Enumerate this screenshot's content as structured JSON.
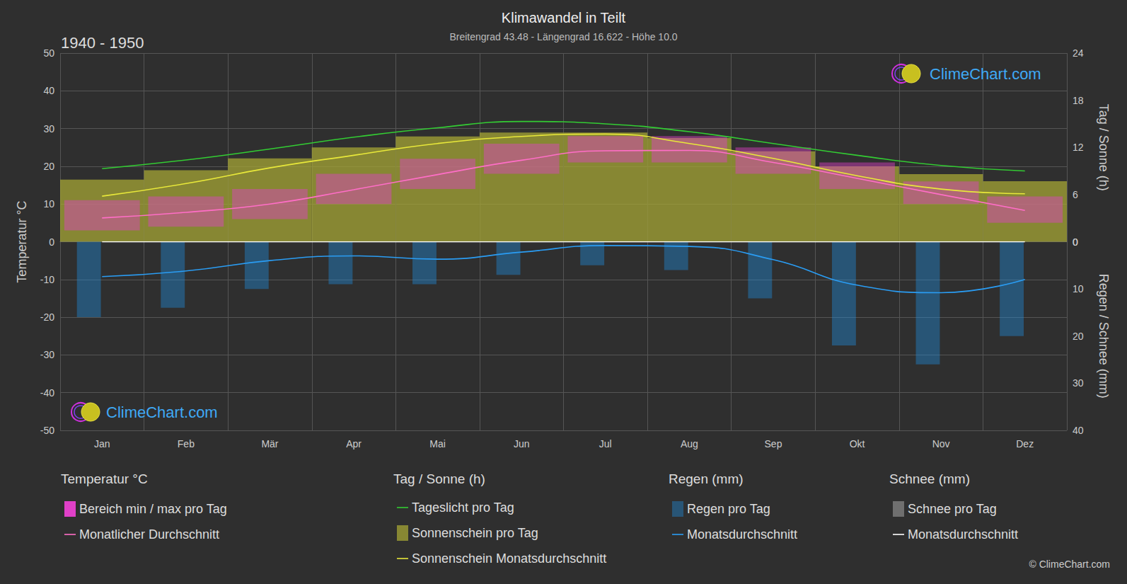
{
  "chart_data": {
    "type": "climate",
    "title": "Klimawandel in Teilt",
    "subtitle": "Breitengrad 43.48 - Längengrad 16.622 - Höhe 10.0",
    "period": "1940 - 1950",
    "ylabel": "Temperatur °C",
    "y2label": "Tag / Sonne (h)",
    "y3label": "Regen / Schnee (mm)",
    "watermark": "ClimeChart.com",
    "copyright": "© ClimeChart.com",
    "categories": [
      "Jan",
      "Feb",
      "Mär",
      "Apr",
      "Mai",
      "Jun",
      "Jul",
      "Aug",
      "Sep",
      "Okt",
      "Nov",
      "Dez"
    ],
    "ylim": [
      -50,
      50
    ],
    "yticks": [
      -50,
      -40,
      -30,
      -20,
      -10,
      0,
      10,
      20,
      30,
      40,
      50
    ],
    "y2lim": [
      0,
      24
    ],
    "y2ticks": [
      0,
      6,
      12,
      18,
      24
    ],
    "y3lim": [
      0,
      40
    ],
    "y3ticks": [
      0,
      10,
      20,
      30,
      40
    ],
    "grid": true,
    "legend_groups": [
      "Temperatur °C",
      "Tag / Sonne (h)",
      "Regen (mm)",
      "Schnee (mm)"
    ],
    "series": [
      {
        "name": "Bereich min / max pro Tag",
        "group": "Temperatur °C",
        "type": "range",
        "axis": "y",
        "color": "#e040c8",
        "min": [
          3,
          4,
          6,
          10,
          14,
          18,
          21,
          21,
          18,
          14,
          10,
          5
        ],
        "max": [
          11,
          12,
          14,
          18,
          22,
          26,
          28,
          28,
          25,
          21,
          16,
          12
        ]
      },
      {
        "name": "Monatlicher Durchschnitt",
        "group": "Temperatur °C",
        "type": "line",
        "axis": "y",
        "color": "#ff6ec7",
        "line_style": "solid",
        "values": [
          6.3,
          7.8,
          10.0,
          13.8,
          17.8,
          21.6,
          24.1,
          24.2,
          21.0,
          16.8,
          12.5,
          8.3
        ]
      },
      {
        "name": "Tageslicht pro Tag",
        "group": "Tag / Sonne (h)",
        "type": "line",
        "axis": "y2",
        "color": "#33cc33",
        "line_style": "solid",
        "values": [
          9.3,
          10.4,
          11.8,
          13.3,
          14.5,
          15.3,
          15.0,
          14.0,
          12.5,
          11.0,
          9.7,
          9.0
        ]
      },
      {
        "name": "Sonnenschein pro Tag",
        "group": "Tag / Sonne (h)",
        "type": "bar",
        "axis": "y2",
        "color": "#a5a536",
        "values": [
          7.9,
          9.1,
          10.6,
          12.0,
          13.4,
          13.9,
          13.9,
          13.2,
          11.5,
          9.6,
          8.6,
          7.7
        ]
      },
      {
        "name": "Sonnenschein Monatsdurchschnitt",
        "group": "Tag / Sonne (h)",
        "type": "line",
        "axis": "y2",
        "color": "#e8e83a",
        "line_style": "solid",
        "values": [
          5.8,
          7.4,
          9.4,
          11.0,
          12.5,
          13.4,
          13.7,
          12.5,
          10.6,
          8.4,
          6.7,
          6.1
        ]
      },
      {
        "name": "Regen pro Tag",
        "group": "Regen (mm)",
        "type": "bar",
        "axis": "y3",
        "color": "#1f8fe0",
        "values": [
          16,
          14,
          10,
          9,
          9,
          7,
          5,
          6,
          12,
          22,
          26,
          20
        ]
      },
      {
        "name": "Monatsdurchschnitt",
        "group": "Regen (mm)",
        "type": "line",
        "axis": "y3",
        "color": "#2a9df4",
        "line_style": "solid",
        "values": [
          7.4,
          6.2,
          4.0,
          3.0,
          3.7,
          2.2,
          0.8,
          1.0,
          3.8,
          9.2,
          10.8,
          8.0
        ]
      },
      {
        "name": "Schnee pro Tag",
        "group": "Schnee (mm)",
        "type": "bar",
        "axis": "y3",
        "color": "#d0d0d0",
        "values": [
          0,
          0,
          0,
          0,
          0,
          0,
          0,
          0,
          0,
          0,
          0,
          0
        ]
      },
      {
        "name": "Monatsdurchschnitt",
        "group": "Schnee (mm)",
        "type": "line",
        "axis": "y3",
        "color": "#ffffff",
        "line_style": "solid",
        "values": [
          0,
          0,
          0,
          0,
          0,
          0,
          0,
          0,
          0,
          0,
          0,
          0
        ]
      }
    ]
  }
}
